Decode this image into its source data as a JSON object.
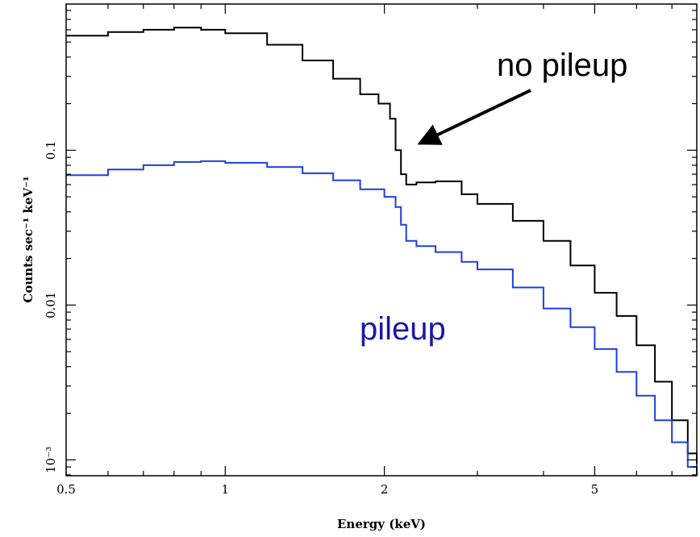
{
  "chart_data": {
    "type": "line",
    "xlabel": "Energy (keV)",
    "ylabel": "Counts sec⁻¹ keV⁻¹",
    "x_scale": "log",
    "y_scale": "log",
    "xlim": [
      0.5,
      7.8
    ],
    "ylim": [
      0.00079,
      0.88
    ],
    "x_ticks": [
      {
        "value": 0.5,
        "label": "0.5"
      },
      {
        "value": 1,
        "label": "1"
      },
      {
        "value": 2,
        "label": "2"
      },
      {
        "value": 5,
        "label": "5"
      }
    ],
    "y_ticks": [
      {
        "value": 0.1,
        "label": "0.1"
      },
      {
        "value": 0.01,
        "label": "0.01"
      },
      {
        "value": 0.001,
        "label": "10⁻³"
      }
    ],
    "grid": false,
    "series": [
      {
        "name": "no pileup",
        "color": "#000000",
        "x": [
          0.5,
          0.6,
          0.7,
          0.8,
          0.9,
          1.0,
          1.2,
          1.4,
          1.6,
          1.8,
          1.95,
          2.05,
          2.1,
          2.15,
          2.2,
          2.3,
          2.5,
          2.8,
          3.0,
          3.5,
          4.0,
          4.5,
          5.0,
          5.5,
          6.0,
          6.5,
          7.0,
          7.5,
          7.8
        ],
        "y": [
          0.55,
          0.58,
          0.6,
          0.62,
          0.6,
          0.57,
          0.48,
          0.38,
          0.29,
          0.23,
          0.2,
          0.16,
          0.1,
          0.07,
          0.06,
          0.062,
          0.063,
          0.052,
          0.045,
          0.035,
          0.026,
          0.018,
          0.012,
          0.0085,
          0.0055,
          0.0032,
          0.0018,
          0.0011,
          0.00095
        ]
      },
      {
        "name": "pileup",
        "color": "#1f3fe0",
        "x": [
          0.5,
          0.6,
          0.7,
          0.8,
          0.9,
          1.0,
          1.2,
          1.4,
          1.6,
          1.8,
          2.0,
          2.1,
          2.15,
          2.2,
          2.3,
          2.5,
          2.8,
          3.0,
          3.5,
          4.0,
          4.5,
          5.0,
          5.5,
          6.0,
          6.5,
          7.0,
          7.5,
          7.8
        ],
        "y": [
          0.069,
          0.075,
          0.08,
          0.084,
          0.085,
          0.083,
          0.078,
          0.071,
          0.064,
          0.056,
          0.05,
          0.043,
          0.033,
          0.026,
          0.024,
          0.022,
          0.019,
          0.017,
          0.013,
          0.0095,
          0.0072,
          0.0052,
          0.0037,
          0.0026,
          0.0018,
          0.0013,
          0.0009,
          0.0008
        ]
      }
    ],
    "annotations": [
      {
        "text": "no pileup",
        "color": "#000000",
        "arrow_to": {
          "x": 2.2,
          "y": 0.09
        }
      },
      {
        "text": "pileup",
        "color": "#1a1aa6"
      }
    ]
  }
}
